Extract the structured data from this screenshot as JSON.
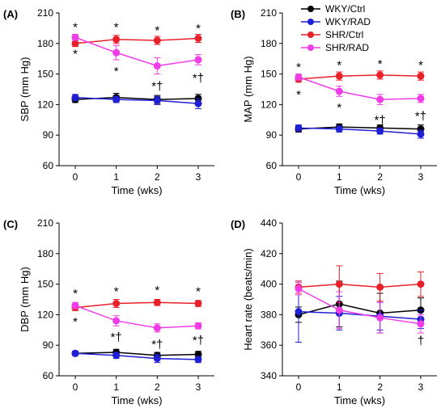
{
  "legend": {
    "placement": "top-right of panel B",
    "items": [
      {
        "label": "WKY/Ctrl",
        "color": "#000000"
      },
      {
        "label": "WKY/RAD",
        "color": "#1f1fd6"
      },
      {
        "label": "SHR/Ctrl",
        "color": "#e8202a"
      },
      {
        "label": "SHR/RAD",
        "color": "#f03ce6"
      }
    ]
  },
  "chart_data": [
    {
      "panel_label": "(A)",
      "type": "line",
      "xlabel": "Time (wks)",
      "ylabel": "SBP (mm Hg)",
      "x": [
        0,
        1,
        2,
        3
      ],
      "x_ticks": [
        "0",
        "1",
        "2",
        "3"
      ],
      "ylim": [
        60,
        210
      ],
      "y_ticks": [
        60,
        90,
        120,
        150,
        180,
        210
      ],
      "grid": false,
      "series": [
        {
          "name": "WKY/Ctrl",
          "color": "#000000",
          "values": [
            125,
            127,
            125,
            126
          ],
          "errors": [
            3,
            4,
            4,
            4
          ]
        },
        {
          "name": "WKY/RAD",
          "color": "#1f1fd6",
          "values": [
            127,
            125,
            124,
            121
          ],
          "errors": [
            3,
            3,
            4,
            5
          ]
        },
        {
          "name": "SHR/Ctrl",
          "color": "#e8202a",
          "values": [
            180,
            184,
            183,
            185
          ],
          "errors": [
            3,
            4,
            4,
            4
          ]
        },
        {
          "name": "SHR/RAD",
          "color": "#f03ce6",
          "values": [
            186,
            171,
            158,
            164
          ],
          "errors": [
            3,
            7,
            8,
            5
          ]
        }
      ],
      "annotations": [
        {
          "text": "*",
          "x": 0,
          "y": 196
        },
        {
          "text": "*",
          "x": 1,
          "y": 196
        },
        {
          "text": "*",
          "x": 2,
          "y": 193
        },
        {
          "text": "*",
          "x": 3,
          "y": 195
        },
        {
          "text": "*",
          "x": 0,
          "y": 170
        },
        {
          "text": "*",
          "x": 1,
          "y": 153
        },
        {
          "text": "*†",
          "x": 2,
          "y": 138
        },
        {
          "text": "*†",
          "x": 3,
          "y": 146
        }
      ]
    },
    {
      "panel_label": "(B)",
      "type": "line",
      "xlabel": "Time (wks)",
      "ylabel": "MAP (mm Hg)",
      "x": [
        0,
        1,
        2,
        3
      ],
      "x_ticks": [
        "0",
        "1",
        "2",
        "3"
      ],
      "ylim": [
        60,
        210
      ],
      "y_ticks": [
        60,
        90,
        120,
        150,
        180,
        210
      ],
      "grid": false,
      "series": [
        {
          "name": "WKY/Ctrl",
          "color": "#000000",
          "values": [
            96,
            98,
            97,
            96
          ],
          "errors": [
            3,
            3,
            3,
            4
          ]
        },
        {
          "name": "WKY/RAD",
          "color": "#1f1fd6",
          "values": [
            97,
            96,
            94,
            91
          ],
          "errors": [
            3,
            3,
            3,
            4
          ]
        },
        {
          "name": "SHR/Ctrl",
          "color": "#e8202a",
          "values": [
            145,
            148,
            149,
            148
          ],
          "errors": [
            3,
            4,
            4,
            4
          ]
        },
        {
          "name": "SHR/RAD",
          "color": "#f03ce6",
          "values": [
            147,
            133,
            125,
            126
          ],
          "errors": [
            3,
            5,
            5,
            4
          ]
        }
      ],
      "annotations": [
        {
          "text": "*",
          "x": 0,
          "y": 157
        },
        {
          "text": "*",
          "x": 1,
          "y": 159
        },
        {
          "text": "*",
          "x": 2,
          "y": 160
        },
        {
          "text": "*",
          "x": 3,
          "y": 159
        },
        {
          "text": "*",
          "x": 0,
          "y": 130
        },
        {
          "text": "*",
          "x": 1,
          "y": 117
        },
        {
          "text": "*†",
          "x": 2,
          "y": 105
        },
        {
          "text": "*†",
          "x": 3,
          "y": 109
        }
      ]
    },
    {
      "panel_label": "(C)",
      "type": "line",
      "xlabel": "Time (wks)",
      "ylabel": "DBP (mm Hg)",
      "x": [
        0,
        1,
        2,
        3
      ],
      "x_ticks": [
        "0",
        "1",
        "2",
        "3"
      ],
      "ylim": [
        60,
        210
      ],
      "y_ticks": [
        60,
        90,
        120,
        150,
        180,
        210
      ],
      "grid": false,
      "series": [
        {
          "name": "WKY/Ctrl",
          "color": "#000000",
          "values": [
            82,
            83,
            80,
            81
          ],
          "errors": [
            2,
            3,
            3,
            3
          ]
        },
        {
          "name": "WKY/RAD",
          "color": "#1f1fd6",
          "values": [
            82,
            80,
            77,
            76
          ],
          "errors": [
            2,
            3,
            4,
            3
          ]
        },
        {
          "name": "SHR/Ctrl",
          "color": "#e8202a",
          "values": [
            127,
            131,
            132,
            131
          ],
          "errors": [
            3,
            4,
            3,
            3
          ]
        },
        {
          "name": "SHR/RAD",
          "color": "#f03ce6",
          "values": [
            129,
            114,
            107,
            109
          ],
          "errors": [
            3,
            5,
            4,
            3
          ]
        }
      ],
      "annotations": [
        {
          "text": "*",
          "x": 0,
          "y": 141
        },
        {
          "text": "*",
          "x": 1,
          "y": 143
        },
        {
          "text": "*",
          "x": 2,
          "y": 144
        },
        {
          "text": "*",
          "x": 3,
          "y": 143
        },
        {
          "text": "*",
          "x": 0,
          "y": 113
        },
        {
          "text": "*†",
          "x": 1,
          "y": 98
        },
        {
          "text": "*†",
          "x": 2,
          "y": 91
        },
        {
          "text": "*†",
          "x": 3,
          "y": 95
        }
      ]
    },
    {
      "panel_label": "(D)",
      "type": "line",
      "xlabel": "Time (wks)",
      "ylabel": "Heart rate (beats/min)",
      "x": [
        0,
        1,
        2,
        3
      ],
      "x_ticks": [
        "0",
        "1",
        "2",
        "3"
      ],
      "ylim": [
        340,
        440
      ],
      "y_ticks": [
        340,
        360,
        380,
        400,
        420,
        440
      ],
      "grid": false,
      "series": [
        {
          "name": "WKY/Ctrl",
          "color": "#000000",
          "values": [
            380,
            387,
            381,
            383
          ],
          "errors": [
            5,
            15,
            13,
            8
          ]
        },
        {
          "name": "WKY/RAD",
          "color": "#1f1fd6",
          "values": [
            382,
            381,
            379,
            377
          ],
          "errors": [
            20,
            11,
            9,
            6
          ]
        },
        {
          "name": "SHR/Ctrl",
          "color": "#e8202a",
          "values": [
            398,
            400,
            398,
            400
          ],
          "errors": [
            4,
            12,
            9,
            8
          ]
        },
        {
          "name": "SHR/RAD",
          "color": "#f03ce6",
          "values": [
            397,
            383,
            378,
            374
          ],
          "errors": [
            4,
            12,
            10,
            6
          ]
        }
      ],
      "annotations": [
        {
          "text": "†",
          "x": 3,
          "y": 363
        }
      ]
    }
  ]
}
